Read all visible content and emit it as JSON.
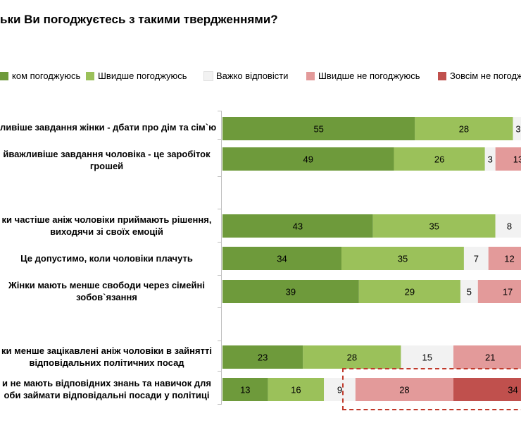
{
  "chart_data": {
    "type": "bar",
    "orientation": "horizontal-stacked",
    "title": "ьки Ви погоджуєтесь з такими твердженнями?",
    "legend": [
      {
        "name": "ком погоджуюсь",
        "color": "#6e9a3b"
      },
      {
        "name": "Швидше погоджуюсь",
        "color": "#9bc15a"
      },
      {
        "name": "Важко відповісти",
        "color": "#f2f2f2"
      },
      {
        "name": "Швидше не погоджуюсь",
        "color": "#e39a9a"
      },
      {
        "name": "Зовсім не погодж",
        "color": "#c0504d"
      }
    ],
    "rows": [
      {
        "label": [
          "ливіше завдання жінки - дбати про дім та сім`ю"
        ],
        "values": [
          55,
          28,
          3,
          null,
          null
        ]
      },
      {
        "label": [
          "йважливіше завдання чоловіка - це заробіток",
          "грошей"
        ],
        "values": [
          49,
          26,
          3,
          13,
          null
        ]
      },
      {
        "label": [
          "ки частіше аніж чоловіки приймають рішення,",
          "виходячи зі своїх емоцій"
        ],
        "values": [
          43,
          35,
          8,
          null,
          null
        ]
      },
      {
        "label": [
          "Це допустимо, коли чоловіки плачуть"
        ],
        "values": [
          34,
          35,
          7,
          12,
          null
        ]
      },
      {
        "label": [
          "Жінки мають менше свободи через сімейні",
          "зобов`язання"
        ],
        "values": [
          39,
          29,
          5,
          17,
          null
        ]
      },
      {
        "label": [
          "ки менше зацікавлені аніж чоловіки в зайнятті",
          "відповідальних політичних посад"
        ],
        "values": [
          23,
          28,
          15,
          21,
          null
        ]
      },
      {
        "label": [
          "и не мають відповідних знань та навичок для",
          "оби займати відповідальні посади у політиці"
        ],
        "values": [
          13,
          16,
          9,
          28,
          34
        ]
      }
    ]
  }
}
